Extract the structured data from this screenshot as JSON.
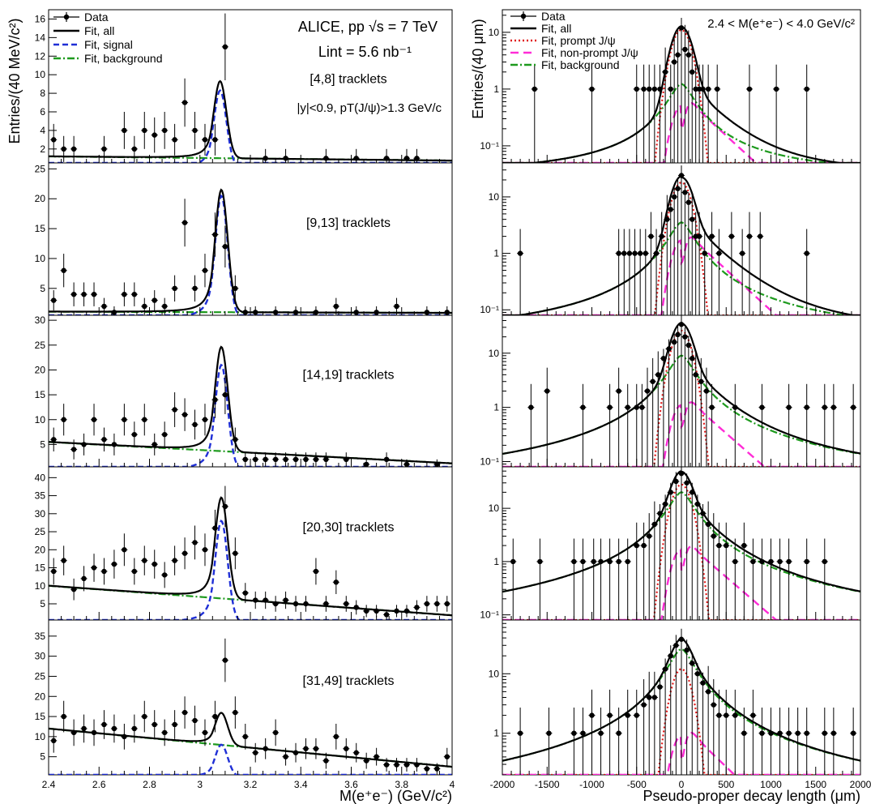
{
  "figure": {
    "left_ylabel": "Entries/(40 MeV/c²)",
    "left_xlabel": "M(e⁺e⁻) (GeV/c²)",
    "right_ylabel": "Entries/(40 μm)",
    "right_xlabel": "Pseudo-proper decay length (μm)",
    "header_experiment": "ALICE, pp √s = 7 TeV",
    "header_lumi": "Lint = 5.6 nb⁻¹",
    "header_cut": "|y|<0.9, pT(J/ψ)>1.3 GeV/c",
    "header_mass_window": "2.4 < M(e⁺e⁻) < 4.0 GeV/c²",
    "left_legend": [
      "Data",
      "Fit, all",
      "Fit, signal",
      "Fit, background"
    ],
    "right_legend": [
      "Data",
      "Fit, all",
      "Fit, prompt J/ψ",
      "Fit, non-prompt J/ψ",
      "Fit, background"
    ],
    "colors": {
      "data": "#000000",
      "fit_all": "#000000",
      "signal": "#1f2fd6",
      "background": "#1e9a1e",
      "prompt": "#e01818",
      "nonprompt": "#ff2cd6"
    }
  },
  "chart_data": [
    {
      "type": "line",
      "title": "[4,8] tracklets",
      "xlabel": "M(e⁺e⁻) (GeV/c²)",
      "ylabel": "Entries/(40 MeV/c²)",
      "xlim": [
        2.4,
        4.0
      ],
      "ylim": [
        0.5,
        17
      ],
      "yticks": [
        2,
        4,
        6,
        8,
        10,
        12,
        14,
        16
      ],
      "xticks": [
        2.4,
        2.6,
        2.8,
        3.0,
        3.2,
        3.4,
        3.6,
        3.8,
        4.0
      ],
      "xtick_labels": [
        "2.4",
        "2.6",
        "2.8",
        "3",
        "3.2",
        "3.4",
        "3.6",
        "3.8",
        "4"
      ],
      "annotation": "[4,8] tracklets",
      "data": {
        "x": [
          2.42,
          2.46,
          2.5,
          2.62,
          2.7,
          2.74,
          2.78,
          2.82,
          2.86,
          2.9,
          2.94,
          2.98,
          3.02,
          3.06,
          3.1,
          3.26,
          3.34,
          3.5,
          3.62,
          3.74,
          3.82,
          3.86
        ],
        "y": [
          3,
          2,
          2,
          2,
          4,
          2,
          4,
          3.5,
          4,
          3,
          7,
          4,
          3,
          3,
          13,
          1,
          1,
          1,
          1,
          1,
          1,
          1
        ],
        "err": [
          1.7,
          1.4,
          1.4,
          1.4,
          2.0,
          1.4,
          2.0,
          1.9,
          2.0,
          1.7,
          2.6,
          2.0,
          1.7,
          1.7,
          3.6,
          1.0,
          1.0,
          1.0,
          1.0,
          1.0,
          1.0,
          1.0
        ]
      },
      "fit": {
        "background_start": 1.2,
        "background_end": 0.75,
        "peak": 8.3,
        "peak_x": 3.08
      }
    },
    {
      "type": "line",
      "title": "[9,13] tracklets",
      "xlim": [
        2.4,
        4.0
      ],
      "ylim": [
        0.5,
        26
      ],
      "yticks": [
        5,
        10,
        15,
        20,
        25
      ],
      "annotation": "[9,13] tracklets",
      "data": {
        "x": [
          2.42,
          2.46,
          2.5,
          2.54,
          2.58,
          2.62,
          2.66,
          2.7,
          2.74,
          2.78,
          2.82,
          2.86,
          2.9,
          2.94,
          2.98,
          3.02,
          3.06,
          3.1,
          3.14,
          3.18,
          3.22,
          3.3,
          3.38,
          3.46,
          3.54,
          3.62,
          3.7,
          3.78,
          3.9,
          3.98
        ],
        "y": [
          3,
          8,
          4,
          4,
          4,
          2,
          1,
          4,
          4,
          2,
          3,
          2,
          5,
          16,
          5,
          8,
          14,
          12,
          5,
          1,
          1,
          1,
          1,
          1,
          2,
          1,
          1,
          2,
          1,
          1
        ],
        "err": [
          1.7,
          2.8,
          2.0,
          2.0,
          2.0,
          1.4,
          1.0,
          2.0,
          2.0,
          1.4,
          1.7,
          1.4,
          2.2,
          4.0,
          2.2,
          2.8,
          3.7,
          3.5,
          2.2,
          1.0,
          1.0,
          1.0,
          1.0,
          1.0,
          1.4,
          1.0,
          1.0,
          1.4,
          1.0,
          1.0
        ]
      },
      "fit": {
        "background_start": 1.1,
        "background_end": 0.9,
        "peak": 20.5,
        "peak_x": 3.085
      }
    },
    {
      "type": "line",
      "title": "[14,19] tracklets",
      "xlim": [
        2.4,
        4.0
      ],
      "ylim": [
        0.5,
        31
      ],
      "yticks": [
        5,
        10,
        15,
        20,
        25,
        30
      ],
      "annotation": "[14,19] tracklets",
      "data": {
        "x": [
          2.42,
          2.46,
          2.5,
          2.54,
          2.58,
          2.62,
          2.66,
          2.7,
          2.74,
          2.78,
          2.82,
          2.86,
          2.9,
          2.94,
          2.98,
          3.02,
          3.06,
          3.1,
          3.14,
          3.18,
          3.22,
          3.26,
          3.3,
          3.34,
          3.38,
          3.42,
          3.46,
          3.5,
          3.58,
          3.66,
          3.74,
          3.82,
          3.94
        ],
        "y": [
          6,
          10,
          4,
          5,
          10,
          6,
          5,
          10,
          7,
          10,
          5,
          7,
          12,
          11,
          9,
          10,
          14,
          15,
          6,
          2,
          2,
          2,
          2,
          2,
          2,
          2,
          2,
          2,
          2,
          1,
          2,
          1,
          1
        ],
        "err": [
          2.4,
          3.2,
          2.0,
          2.2,
          3.2,
          2.4,
          2.2,
          3.2,
          2.6,
          3.2,
          2.2,
          2.6,
          3.5,
          3.3,
          3.0,
          3.2,
          3.7,
          3.9,
          2.4,
          1.4,
          1.4,
          1.4,
          1.4,
          1.4,
          1.4,
          1.4,
          1.4,
          1.4,
          1.4,
          1.0,
          1.4,
          1.0,
          1.0
        ]
      },
      "fit": {
        "background_start": 5.5,
        "background_end": 1.2,
        "peak": 21,
        "peak_x": 3.085
      }
    },
    {
      "type": "line",
      "title": "[20,30] tracklets",
      "xlim": [
        2.4,
        4.0
      ],
      "ylim": [
        0.5,
        43
      ],
      "yticks": [
        5,
        10,
        15,
        20,
        25,
        30,
        35,
        40
      ],
      "annotation": "[20,30] tracklets",
      "data": {
        "x": [
          2.42,
          2.46,
          2.5,
          2.54,
          2.58,
          2.62,
          2.66,
          2.7,
          2.74,
          2.78,
          2.82,
          2.86,
          2.9,
          2.94,
          2.98,
          3.02,
          3.06,
          3.1,
          3.14,
          3.18,
          3.22,
          3.26,
          3.3,
          3.34,
          3.38,
          3.42,
          3.46,
          3.5,
          3.54,
          3.58,
          3.62,
          3.66,
          3.7,
          3.74,
          3.78,
          3.82,
          3.86,
          3.9,
          3.94,
          3.98
        ],
        "y": [
          14,
          17,
          9,
          12,
          15,
          14,
          16,
          20,
          14,
          17,
          16,
          13,
          17,
          19,
          22,
          20,
          26,
          32,
          19,
          8,
          6,
          6,
          5,
          6,
          5,
          5,
          14,
          5,
          11,
          5,
          4,
          3,
          3,
          2,
          3,
          3,
          4,
          5,
          5,
          5
        ],
        "err": [
          3.7,
          4.1,
          3.0,
          3.5,
          3.9,
          3.7,
          4.0,
          4.5,
          3.7,
          4.1,
          4.0,
          3.6,
          4.1,
          4.4,
          4.7,
          4.5,
          5.1,
          5.7,
          4.4,
          2.8,
          2.4,
          2.4,
          2.2,
          2.4,
          2.2,
          2.2,
          3.7,
          2.2,
          3.3,
          2.2,
          2.0,
          1.7,
          1.7,
          1.4,
          1.7,
          1.7,
          2.0,
          2.2,
          2.2,
          2.2
        ]
      },
      "fit": {
        "background_start": 10,
        "background_end": 1.8,
        "peak": 28,
        "peak_x": 3.085
      }
    },
    {
      "type": "line",
      "title": "[31,49] tracklets",
      "xlim": [
        2.4,
        4.0
      ],
      "ylim": [
        0.5,
        39
      ],
      "yticks": [
        5,
        10,
        15,
        20,
        25,
        30,
        35
      ],
      "annotation": "[31,49] tracklets",
      "data": {
        "x": [
          2.42,
          2.46,
          2.5,
          2.54,
          2.58,
          2.62,
          2.66,
          2.7,
          2.74,
          2.78,
          2.82,
          2.86,
          2.9,
          2.94,
          2.98,
          3.02,
          3.06,
          3.1,
          3.14,
          3.18,
          3.22,
          3.26,
          3.3,
          3.34,
          3.38,
          3.42,
          3.46,
          3.5,
          3.54,
          3.58,
          3.62,
          3.66,
          3.7,
          3.74,
          3.78,
          3.82,
          3.86,
          3.9,
          3.94,
          3.98
        ],
        "y": [
          9,
          15,
          11,
          12,
          11,
          13,
          12,
          10,
          12,
          15,
          13,
          11,
          13,
          16,
          14,
          11,
          15,
          29,
          16,
          10,
          6,
          7,
          11,
          5,
          6,
          7,
          7,
          4,
          10,
          7,
          6,
          4,
          5,
          3,
          3,
          3,
          3,
          2,
          2,
          5
        ],
        "err": [
          3.0,
          3.9,
          3.3,
          3.5,
          3.3,
          3.6,
          3.5,
          3.2,
          3.5,
          3.9,
          3.6,
          3.3,
          3.6,
          4.0,
          3.7,
          3.3,
          3.9,
          5.4,
          4.0,
          3.2,
          2.4,
          2.6,
          3.3,
          2.2,
          2.4,
          2.6,
          2.6,
          2.0,
          3.2,
          2.6,
          2.4,
          2.0,
          2.2,
          1.7,
          1.7,
          1.7,
          1.7,
          1.4,
          1.4,
          2.2
        ]
      },
      "fit": {
        "background_start": 12,
        "background_end": 2.5,
        "peak": 8,
        "peak_x": 3.085
      }
    },
    {
      "type": "line",
      "scale": "log",
      "title": "[4,8] tracklets",
      "xlim": [
        -2000,
        2000
      ],
      "ylim": [
        0.05,
        25
      ],
      "yticks": [
        0.1,
        1,
        10
      ],
      "ytick_labels": [
        "10⁻¹",
        "1",
        "10"
      ],
      "data": {
        "x": [
          -1640,
          -1000,
          -500,
          -420,
          -360,
          -300,
          -240,
          -180,
          -120,
          -80,
          -40,
          0,
          40,
          80,
          120,
          160,
          200,
          240,
          300,
          400,
          760,
          1060,
          1400
        ],
        "y": [
          1,
          1,
          1,
          1,
          1,
          1,
          1,
          2,
          1,
          3,
          4,
          12,
          5,
          4,
          2,
          1,
          1,
          1,
          1,
          1,
          1,
          1,
          1
        ]
      },
      "fit": {
        "all_peak": 12,
        "prompt_peak": 11,
        "nonprompt_peak": 0.5,
        "background_peak": 1.2
      }
    },
    {
      "type": "line",
      "scale": "log",
      "title": "[9,13] tracklets",
      "xlim": [
        -2000,
        2000
      ],
      "ylim": [
        0.08,
        40
      ],
      "yticks": [
        0.1,
        1,
        10
      ],
      "ytick_labels": [
        "10⁻¹",
        "1",
        "10"
      ],
      "data": {
        "x": [
          -1800,
          -700,
          -640,
          -580,
          -520,
          -460,
          -400,
          -340,
          -280,
          -220,
          -160,
          -120,
          -80,
          -40,
          0,
          40,
          80,
          120,
          160,
          200,
          260,
          340,
          420,
          560,
          680,
          760,
          880,
          1400
        ],
        "y": [
          1,
          1,
          1,
          1,
          1,
          1,
          1,
          2,
          1,
          2,
          4,
          6,
          10,
          14,
          24,
          12,
          8,
          4,
          2,
          2,
          1,
          2,
          1,
          2,
          1,
          2,
          2,
          1
        ]
      },
      "fit": {
        "all_peak": 22,
        "prompt_peak": 18,
        "nonprompt_peak": 1.7,
        "background_peak": 3.5
      }
    },
    {
      "type": "line",
      "scale": "log",
      "title": "[14,19] tracklets",
      "xlim": [
        -2000,
        2000
      ],
      "ylim": [
        0.08,
        50
      ],
      "yticks": [
        0.1,
        1,
        10
      ],
      "ytick_labels": [
        "10⁻¹",
        "1",
        "10"
      ],
      "data": {
        "x": [
          -1680,
          -1500,
          -1100,
          -800,
          -700,
          -600,
          -500,
          -440,
          -380,
          -320,
          -260,
          -200,
          -140,
          -80,
          -40,
          0,
          40,
          80,
          120,
          160,
          220,
          280,
          340,
          600,
          900,
          1200,
          1400,
          1600,
          1700,
          1920
        ],
        "y": [
          1,
          2,
          1,
          1,
          2,
          1,
          1,
          1,
          2,
          3,
          4,
          8,
          12,
          16,
          22,
          34,
          20,
          14,
          8,
          4,
          3,
          2,
          1,
          1,
          1,
          1,
          1,
          1,
          1,
          1
        ]
      },
      "fit": {
        "all_peak": 32,
        "prompt_peak": 26,
        "nonprompt_peak": 1.1,
        "background_peak": 9
      }
    },
    {
      "type": "line",
      "scale": "log",
      "title": "[20,30] tracklets",
      "xlim": [
        -2000,
        2000
      ],
      "ylim": [
        0.08,
        60
      ],
      "yticks": [
        0.1,
        1,
        10
      ],
      "ytick_labels": [
        "10⁻¹",
        "1",
        "10"
      ],
      "data": {
        "x": [
          -1880,
          -1580,
          -1200,
          -1100,
          -980,
          -900,
          -800,
          -700,
          -600,
          -500,
          -420,
          -360,
          -300,
          -240,
          -180,
          -120,
          -60,
          0,
          60,
          120,
          180,
          240,
          300,
          360,
          420,
          500,
          600,
          700,
          800,
          900,
          1000,
          1100,
          1200,
          1400,
          1600
        ],
        "y": [
          1,
          1,
          1,
          1,
          1,
          1,
          1,
          1,
          1,
          2,
          2,
          3,
          5,
          8,
          12,
          20,
          32,
          45,
          30,
          20,
          12,
          8,
          5,
          3,
          2,
          2,
          1,
          2,
          1,
          1,
          1,
          1,
          1,
          1,
          1
        ]
      },
      "fit": {
        "all_peak": 45,
        "prompt_peak": 28,
        "nonprompt_peak": 1.7,
        "background_peak": 20
      }
    },
    {
      "type": "line",
      "scale": "log",
      "title": "[31,49] tracklets",
      "xlim": [
        -2000,
        2000
      ],
      "ylim": [
        0.2,
        80
      ],
      "yticks": [
        1,
        10
      ],
      "ytick_labels": [
        "1",
        "10"
      ],
      "data": {
        "x": [
          -1800,
          -1480,
          -1200,
          -1100,
          -1000,
          -900,
          -800,
          -700,
          -600,
          -500,
          -420,
          -360,
          -300,
          -240,
          -180,
          -120,
          -60,
          0,
          60,
          120,
          180,
          240,
          300,
          360,
          420,
          500,
          600,
          700,
          800,
          900,
          1000,
          1100,
          1200,
          1300,
          1400,
          1600,
          1700,
          1920
        ],
        "y": [
          1,
          1,
          1,
          1,
          2,
          1,
          2,
          1,
          2,
          2,
          3,
          4,
          4,
          6,
          12,
          20,
          30,
          38,
          25,
          15,
          10,
          7,
          5,
          3,
          2,
          2,
          2,
          1,
          2,
          1,
          1,
          1,
          1,
          1,
          1,
          1,
          1,
          1
        ]
      },
      "fit": {
        "all_peak": 36,
        "prompt_peak": 12,
        "nonprompt_peak": 0.9,
        "background_peak": 26
      }
    }
  ]
}
